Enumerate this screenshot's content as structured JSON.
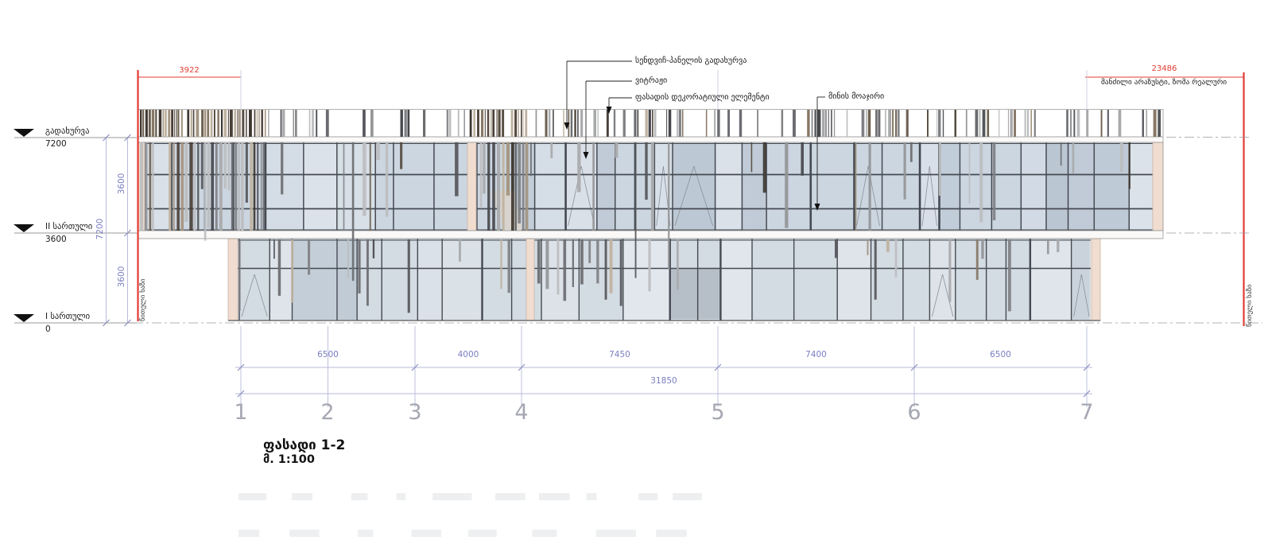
{
  "title": {
    "name": "ფასადი 1-2",
    "scale": "მ. 1:100"
  },
  "annotations": {
    "roof": "სენდვიჩ-პანელის გადახურვა",
    "vitrage": "ვიტრაჟი",
    "decorative": "ფასადის დეკორატიული ელემენტი",
    "railing": "მინის მოაჯირი"
  },
  "red_lines": {
    "left_dim": "3922",
    "right_dim": "23486",
    "right_note": "მანძილი არაზუსტი, ზომა რეალური",
    "label": "წითელი ხაზი"
  },
  "levels": [
    {
      "label": "გადახურვა",
      "value": "7200"
    },
    {
      "label": "II სართული",
      "value": "3600"
    },
    {
      "label": "I სართული",
      "value": "0"
    }
  ],
  "vertical_dims": {
    "upper": "3600",
    "overall": "7200",
    "lower": "3600"
  },
  "horizontal_dims": {
    "segments": [
      "6500",
      "4000",
      "7450",
      "7400",
      "6500"
    ],
    "total": "31850"
  },
  "grid": {
    "labels": [
      "1",
      "2",
      "3",
      "4",
      "5",
      "6",
      "7"
    ]
  },
  "colors": {
    "red": "#e23b32",
    "dim_text": "#7a7ec0",
    "dim_line": "#b7badb",
    "grid_number": "#a5a7b2",
    "glazing_upper": "#ccd6e1",
    "glazing_lower": "#d3dbe3",
    "mullion": "#454a52",
    "pink_wall": "#f0ddd0",
    "pink_wall_border": "#c9b3a5",
    "slat_grays": [
      "#55565a",
      "#6b6c70",
      "#808184",
      "#949597",
      "#a8a9ab",
      "#47484c",
      "#bcbdbf"
    ],
    "slat_browns": [
      "#3f3831",
      "#564b40",
      "#6e6152",
      "#877866",
      "#a3937f",
      "#bfb2a0",
      "#4a4038"
    ]
  }
}
